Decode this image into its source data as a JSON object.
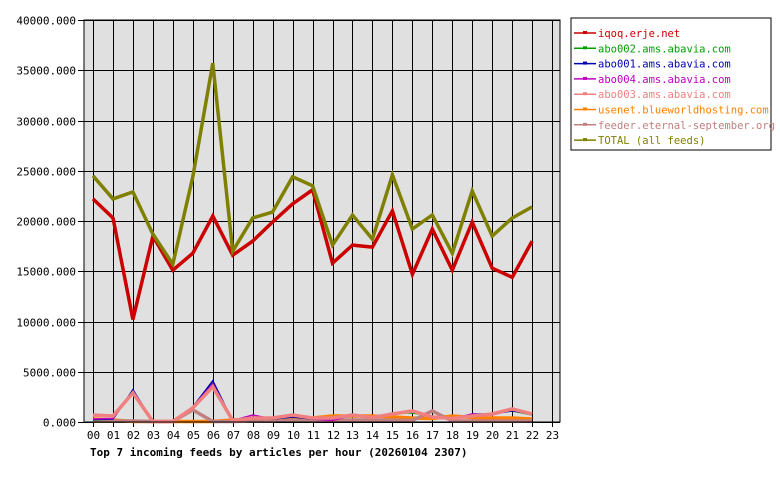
{
  "chart_data": {
    "type": "line",
    "title": "Top 7 incoming feeds by articles per hour (20260104 2307)",
    "xlabel": "",
    "ylabel": "",
    "ylim": [
      0,
      40000
    ],
    "grid": true,
    "legend_position": "right",
    "y_ticks": [
      "0.000",
      "5000.000",
      "10000.000",
      "15000.000",
      "20000.000",
      "25000.000",
      "30000.000",
      "35000.000",
      "40000.000"
    ],
    "categories": [
      "00",
      "01",
      "02",
      "03",
      "04",
      "05",
      "06",
      "07",
      "08",
      "09",
      "10",
      "11",
      "12",
      "13",
      "14",
      "15",
      "16",
      "17",
      "18",
      "19",
      "20",
      "21",
      "22",
      "23"
    ],
    "series": [
      {
        "name": "iqoq.erje.net",
        "color": "#cc0000",
        "values": [
          22200,
          20300,
          10200,
          18500,
          15100,
          16800,
          20500,
          16600,
          18000,
          19900,
          21700,
          23100,
          15800,
          17600,
          17400,
          21000,
          14700,
          19200,
          15100,
          19900,
          15300,
          14400,
          18000
        ]
      },
      {
        "name": "abo002.ams.abavia.com",
        "color": "#00a000",
        "values": [
          200,
          300,
          3100,
          50,
          50,
          1400,
          3900,
          100,
          500,
          300,
          500,
          300,
          350,
          800,
          400,
          900,
          900,
          600,
          300,
          700,
          800,
          1100,
          700
        ]
      },
      {
        "name": "abo001.ams.abavia.com",
        "color": "#0000b0",
        "values": [
          250,
          300,
          3200,
          50,
          50,
          1500,
          4100,
          100,
          500,
          300,
          500,
          300,
          300,
          600,
          400,
          900,
          1000,
          500,
          300,
          800,
          800,
          1100,
          800
        ]
      },
      {
        "name": "abo004.ams.abavia.com",
        "color": "#c000c0",
        "values": [
          300,
          350,
          3000,
          50,
          50,
          1500,
          3800,
          150,
          700,
          300,
          600,
          300,
          150,
          700,
          400,
          800,
          1100,
          500,
          300,
          800,
          700,
          1200,
          900
        ]
      },
      {
        "name": "abo003.ams.abavia.com",
        "color": "#f08080",
        "values": [
          700,
          600,
          2900,
          50,
          50,
          1400,
          3500,
          150,
          400,
          400,
          700,
          400,
          400,
          700,
          450,
          800,
          1100,
          500,
          350,
          600,
          800,
          1300,
          800
        ]
      },
      {
        "name": "usenet.blueworldhosting.com",
        "color": "#ff8000",
        "values": [
          300,
          200,
          50,
          50,
          50,
          50,
          50,
          200,
          300,
          300,
          300,
          400,
          600,
          600,
          600,
          500,
          400,
          350,
          600,
          450,
          400,
          400,
          300
        ]
      },
      {
        "name": "feeder.eternal-september.org",
        "color": "#c08080",
        "values": [
          100,
          100,
          100,
          50,
          50,
          1200,
          50,
          50,
          100,
          100,
          200,
          100,
          200,
          200,
          200,
          200,
          150,
          1100,
          100,
          100,
          100,
          100,
          100
        ]
      },
      {
        "name": "TOTAL (all feeds)",
        "color": "#808000",
        "values": [
          24500,
          22200,
          22900,
          18700,
          15700,
          24400,
          35700,
          17000,
          20300,
          20900,
          24400,
          23500,
          17600,
          20600,
          18200,
          24600,
          19200,
          20600,
          16800,
          23000,
          18500,
          20300,
          21400
        ]
      }
    ]
  },
  "legend": {
    "items": [
      {
        "label": "iqoq.erje.net",
        "color": "#cc0000"
      },
      {
        "label": "abo002.ams.abavia.com",
        "color": "#00a000"
      },
      {
        "label": "abo001.ams.abavia.com",
        "color": "#0000b0"
      },
      {
        "label": "abo004.ams.abavia.com",
        "color": "#c000c0"
      },
      {
        "label": "abo003.ams.abavia.com",
        "color": "#f08080"
      },
      {
        "label": "usenet.blueworldhosting.com",
        "color": "#ff8000"
      },
      {
        "label": "feeder.eternal-september.org",
        "color": "#c08080"
      },
      {
        "label": "TOTAL (all feeds)",
        "color": "#808000"
      }
    ]
  },
  "colors": {
    "plot_background": "#e0e0e0",
    "grid": "#000000",
    "frame": "#000000"
  }
}
